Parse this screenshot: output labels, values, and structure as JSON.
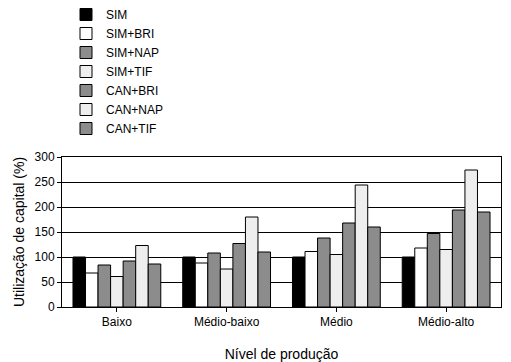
{
  "chart_data": {
    "type": "bar",
    "categories": [
      "Baixo",
      "Médio-baixo",
      "Médio",
      "Médio-alto"
    ],
    "series": [
      {
        "name": "SIM",
        "color": "#000000",
        "values": [
          100,
          100,
          100,
          100
        ]
      },
      {
        "name": "SIM+BRI",
        "color": "#ffffff",
        "values": [
          68,
          88,
          111,
          118
        ]
      },
      {
        "name": "SIM+NAP",
        "color": "#8c8c8c",
        "values": [
          84,
          108,
          138,
          147
        ]
      },
      {
        "name": "SIM+TIF",
        "color": "#eeeeee",
        "values": [
          61,
          76,
          105,
          115
        ]
      },
      {
        "name": "CAN+BRI",
        "color": "#8c8c8c",
        "values": [
          92,
          127,
          168,
          194
        ]
      },
      {
        "name": "CAN+NAP",
        "color": "#eeeeee",
        "values": [
          123,
          180,
          244,
          274
        ]
      },
      {
        "name": "CAN+TIF",
        "color": "#8c8c8c",
        "values": [
          86,
          110,
          160,
          190
        ]
      }
    ],
    "x_label": "Nível de produção",
    "y_label": "Utilização de capital (%)",
    "ylim": [
      0,
      300
    ],
    "yticks": [
      0,
      50,
      100,
      150,
      200,
      250,
      300
    ],
    "grid": true,
    "legend": "top"
  }
}
